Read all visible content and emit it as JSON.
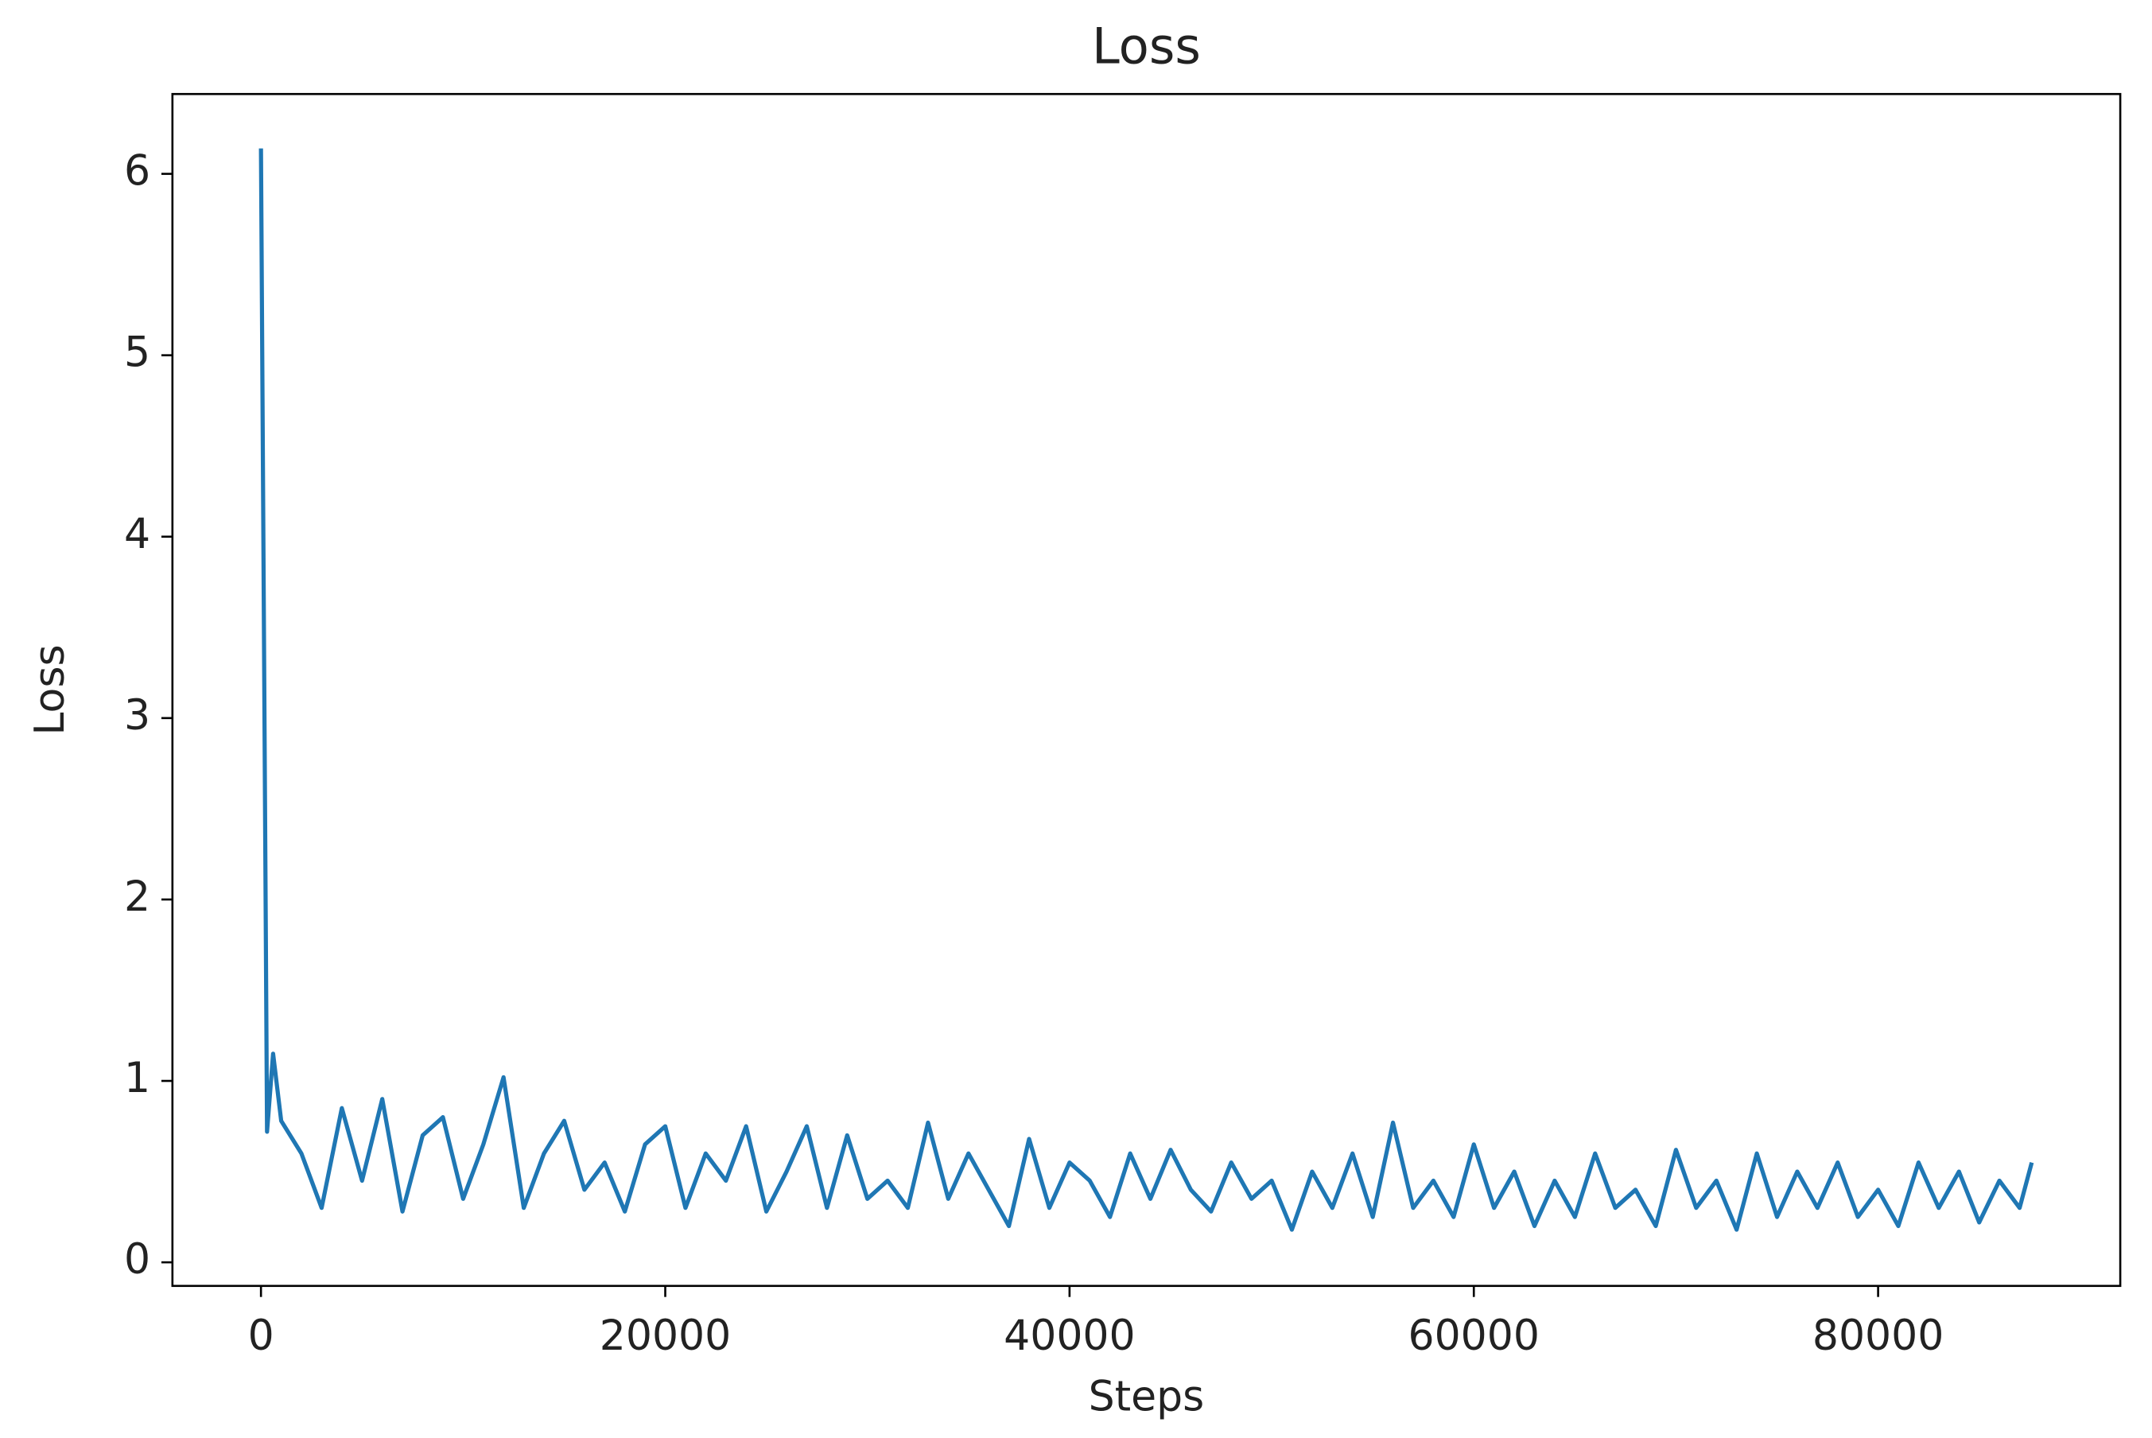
{
  "chart_data": {
    "type": "line",
    "title": "Loss",
    "x_label": "Steps",
    "y_label": "Loss",
    "x": [
      0,
      300,
      600,
      1000,
      2000,
      3000,
      4000,
      5000,
      6000,
      7000,
      8000,
      9000,
      10000,
      11000,
      12000,
      13000,
      14000,
      15000,
      16000,
      17000,
      18000,
      19000,
      20000,
      21000,
      22000,
      23000,
      24000,
      25000,
      26000,
      27000,
      28000,
      29000,
      30000,
      31000,
      32000,
      33000,
      34000,
      35000,
      36000,
      37000,
      38000,
      39000,
      40000,
      41000,
      42000,
      43000,
      44000,
      45000,
      46000,
      47000,
      48000,
      49000,
      50000,
      51000,
      52000,
      53000,
      54000,
      55000,
      56000,
      57000,
      58000,
      59000,
      60000,
      61000,
      62000,
      63000,
      64000,
      65000,
      66000,
      67000,
      68000,
      69000,
      70000,
      71000,
      72000,
      73000,
      74000,
      75000,
      76000,
      77000,
      78000,
      79000,
      80000,
      81000,
      82000,
      83000,
      84000,
      85000,
      86000,
      87000,
      87600
    ],
    "series": [
      {
        "name": "Loss",
        "color": "#1f77b4",
        "values": [
          6.14,
          0.72,
          1.15,
          0.78,
          0.6,
          0.3,
          0.85,
          0.45,
          0.9,
          0.28,
          0.7,
          0.8,
          0.35,
          0.65,
          1.02,
          0.3,
          0.6,
          0.78,
          0.4,
          0.55,
          0.28,
          0.65,
          0.75,
          0.3,
          0.6,
          0.45,
          0.75,
          0.28,
          0.5,
          0.75,
          0.3,
          0.7,
          0.35,
          0.45,
          0.3,
          0.77,
          0.35,
          0.6,
          0.4,
          0.2,
          0.68,
          0.3,
          0.55,
          0.45,
          0.25,
          0.6,
          0.35,
          0.62,
          0.4,
          0.28,
          0.55,
          0.35,
          0.45,
          0.18,
          0.5,
          0.3,
          0.6,
          0.25,
          0.77,
          0.3,
          0.45,
          0.25,
          0.65,
          0.3,
          0.5,
          0.2,
          0.45,
          0.25,
          0.6,
          0.3,
          0.4,
          0.2,
          0.62,
          0.3,
          0.45,
          0.18,
          0.6,
          0.25,
          0.5,
          0.3,
          0.55,
          0.25,
          0.4,
          0.2,
          0.55,
          0.3,
          0.5,
          0.22,
          0.45,
          0.3,
          0.55
        ]
      }
    ],
    "xlim": [
      -4380,
      91980
    ],
    "ylim": [
      -0.13,
      6.44
    ],
    "xticks": [
      0,
      20000,
      40000,
      60000,
      80000
    ],
    "yticks": [
      0,
      1,
      2,
      3,
      4,
      5,
      6
    ]
  }
}
